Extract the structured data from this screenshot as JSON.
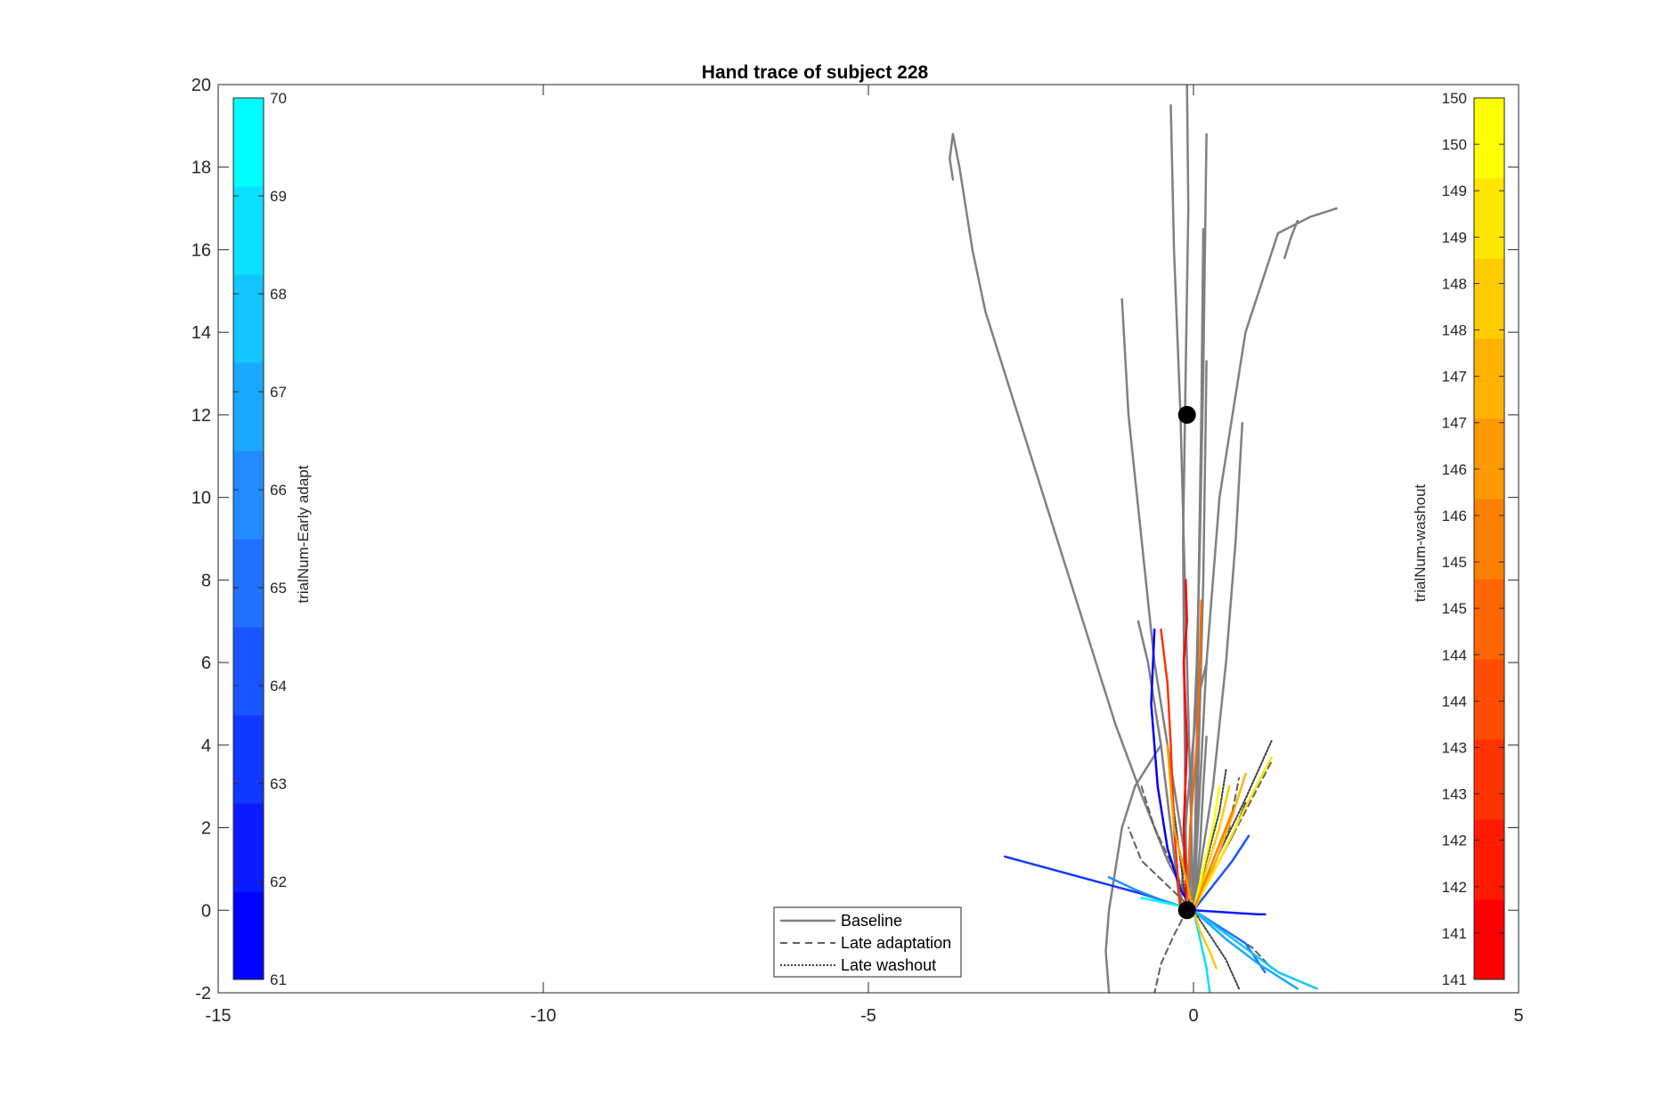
{
  "chart_data": {
    "type": "line",
    "title": "Hand trace of subject 228",
    "xlim": [
      -15,
      5
    ],
    "ylim": [
      -2,
      20
    ],
    "x_ticks": [
      -15,
      -10,
      -5,
      0,
      5
    ],
    "y_ticks": [
      -2,
      0,
      2,
      4,
      6,
      8,
      10,
      12,
      14,
      16,
      18,
      20
    ],
    "grid": false,
    "legend": {
      "placement": "bottom-center",
      "entries": [
        {
          "label": "Baseline",
          "style": "solid",
          "color": "#808080"
        },
        {
          "label": "Late adaptation",
          "style": "dashed",
          "color": "#606060"
        },
        {
          "label": "Late washout",
          "style": "dotted",
          "color": "#404040"
        }
      ]
    },
    "markers": [
      {
        "x": -0.1,
        "y": 12,
        "color": "#000000"
      },
      {
        "x": -0.1,
        "y": 0,
        "color": "#000000"
      }
    ],
    "colorbars": [
      {
        "label": "trialNum-Early adapt",
        "placement": "left",
        "tick_labels": [
          "61",
          "62",
          "63",
          "64",
          "65",
          "66",
          "67",
          "68",
          "69",
          "70"
        ],
        "colors": [
          "#0000ff",
          "#0a1cff",
          "#1238ff",
          "#1a54ff",
          "#2270ff",
          "#228cff",
          "#1aa8ff",
          "#12c4ff",
          "#0ae0ff",
          "#00ffff"
        ]
      },
      {
        "label": "trialNum-washout",
        "placement": "right",
        "tick_labels": [
          "141",
          "141",
          "142",
          "142",
          "143",
          "143",
          "144",
          "144",
          "145",
          "145",
          "146",
          "146",
          "147",
          "147",
          "148",
          "148",
          "149",
          "149",
          "150",
          "150"
        ],
        "colors": [
          "#ff0000",
          "#ff1a00",
          "#ff3300",
          "#ff4d00",
          "#ff6600",
          "#ff8000",
          "#ff9900",
          "#ffb300",
          "#ffcc00",
          "#ffe600",
          "#ffff00"
        ]
      }
    ],
    "series": [
      {
        "group": "Baseline",
        "color": "#808080",
        "style": "solid",
        "x": [
          -3.7,
          -3.6,
          -3.5,
          -3.4,
          -3.2,
          -2.8,
          -2.4,
          -2.0,
          -1.6,
          -1.2,
          -0.8,
          -0.4,
          0.0
        ],
        "y": [
          18.8,
          18.0,
          17.0,
          16.0,
          14.5,
          12.5,
          10.5,
          8.5,
          6.5,
          4.5,
          2.8,
          1.2,
          0.0
        ]
      },
      {
        "group": "Baseline",
        "color": "#808080",
        "style": "solid",
        "x": [
          -3.7,
          -3.75,
          -3.7
        ],
        "y": [
          18.8,
          18.2,
          17.7
        ]
      },
      {
        "group": "Baseline",
        "color": "#808080",
        "style": "solid",
        "x": [
          -0.1,
          -0.12,
          -0.14,
          -0.16,
          -0.12,
          -0.08,
          -0.1
        ],
        "y": [
          0.0,
          2.0,
          5.0,
          9.0,
          13.0,
          17.0,
          20.0
        ]
      },
      {
        "group": "Baseline",
        "color": "#808080",
        "style": "solid",
        "x": [
          0.0,
          -0.05,
          -0.1,
          -0.15,
          -0.2,
          -0.3,
          -0.35
        ],
        "y": [
          0.0,
          3.0,
          6.0,
          9.0,
          12.0,
          16.0,
          19.5
        ]
      },
      {
        "group": "Baseline",
        "color": "#808080",
        "style": "solid",
        "x": [
          -0.05,
          -0.03,
          0.05,
          0.1,
          0.15,
          0.2
        ],
        "y": [
          0.0,
          3.0,
          6.0,
          9.0,
          13.0,
          18.8
        ]
      },
      {
        "group": "Baseline",
        "color": "#808080",
        "style": "solid",
        "x": [
          0.0,
          0.05,
          0.08,
          0.12,
          0.15
        ],
        "y": [
          0.0,
          4.0,
          8.0,
          12.0,
          16.5
        ]
      },
      {
        "group": "Baseline",
        "color": "#808080",
        "style": "solid",
        "x": [
          0.0,
          0.1,
          0.2,
          0.4,
          0.8,
          1.3,
          1.8,
          2.2
        ],
        "y": [
          0.0,
          3.0,
          6.0,
          10.0,
          14.0,
          16.4,
          16.8,
          17.0
        ]
      },
      {
        "group": "Baseline",
        "color": "#808080",
        "style": "solid",
        "x": [
          1.6,
          1.5,
          1.4
        ],
        "y": [
          16.7,
          16.3,
          15.8
        ]
      },
      {
        "group": "Baseline",
        "color": "#808080",
        "style": "solid",
        "x": [
          0.0,
          0.05,
          0.1,
          0.15,
          0.18,
          0.2
        ],
        "y": [
          0.0,
          2.0,
          5.0,
          8.0,
          11.0,
          13.3
        ]
      },
      {
        "group": "Baseline",
        "color": "#808080",
        "style": "solid",
        "x": [
          0.0,
          0.3,
          0.5,
          0.65,
          0.75
        ],
        "y": [
          0.0,
          3.0,
          6.0,
          9.0,
          11.8
        ]
      },
      {
        "group": "Baseline",
        "color": "#808080",
        "style": "solid",
        "x": [
          0.0,
          -0.3,
          -0.6,
          -0.8,
          -1.0,
          -1.1
        ],
        "y": [
          0.0,
          3.0,
          6.0,
          9.0,
          12.0,
          14.8
        ]
      },
      {
        "group": "Baseline",
        "color": "#808080",
        "style": "solid",
        "x": [
          -0.2,
          -0.35,
          -0.5,
          -0.7,
          -0.85
        ],
        "y": [
          0.0,
          2.0,
          4.0,
          6.0,
          7.0
        ]
      },
      {
        "group": "Baseline",
        "color": "#808080",
        "style": "solid",
        "x": [
          0.0,
          0.1,
          0.15,
          0.2
        ],
        "y": [
          0.0,
          1.5,
          3.0,
          4.2
        ]
      },
      {
        "group": "Baseline",
        "color": "#808080",
        "style": "solid",
        "x": [
          -0.5,
          -0.9,
          -1.1,
          -1.2,
          -1.3,
          -1.35,
          -1.3
        ],
        "y": [
          4.0,
          3.0,
          2.0,
          1.0,
          0.0,
          -1.0,
          -2.0
        ]
      },
      {
        "group": "Baseline",
        "color": "#808080",
        "style": "solid",
        "x": [
          -0.2,
          -0.1,
          0.05,
          0.2
        ],
        "y": [
          0.0,
          2.5,
          5.0,
          6.0
        ]
      },
      {
        "group": "Late adaptation",
        "color": "#606060",
        "style": "dashed",
        "x": [
          0.0,
          -0.3,
          -0.6,
          -0.8
        ],
        "y": [
          0.0,
          1.0,
          2.0,
          3.0
        ]
      },
      {
        "group": "Late adaptation",
        "color": "#606060",
        "style": "dashed",
        "x": [
          0.0,
          -0.4,
          -0.8,
          -1.0
        ],
        "y": [
          0.0,
          0.6,
          1.2,
          2.0
        ]
      },
      {
        "group": "Late adaptation",
        "color": "#606060",
        "style": "dashed",
        "x": [
          0.0,
          0.3,
          0.55,
          0.7
        ],
        "y": [
          0.0,
          1.0,
          2.0,
          3.2
        ]
      },
      {
        "group": "Late adaptation",
        "color": "#606060",
        "style": "dashed",
        "x": [
          -0.1,
          -0.3,
          -0.5,
          -0.6
        ],
        "y": [
          0.0,
          -0.6,
          -1.3,
          -2.0
        ]
      },
      {
        "group": "Late adaptation",
        "color": "#606060",
        "style": "dashed",
        "x": [
          0.0,
          0.5,
          0.9,
          1.2
        ],
        "y": [
          0.0,
          -0.5,
          -0.9,
          -1.4
        ]
      },
      {
        "group": "Late adaptation",
        "color": "#606060",
        "style": "dashed",
        "x": [
          0.0,
          0.4,
          0.8,
          1.2
        ],
        "y": [
          0.0,
          1.2,
          2.4,
          3.6
        ]
      },
      {
        "group": "Late washout",
        "color": "#404040",
        "style": "dotted",
        "x": [
          0.0,
          0.4,
          0.8,
          1.2
        ],
        "y": [
          0.0,
          1.4,
          2.7,
          4.1
        ]
      },
      {
        "group": "Late washout",
        "color": "#404040",
        "style": "dotted",
        "x": [
          -0.1,
          -0.2,
          -0.3,
          -0.35
        ],
        "y": [
          0.0,
          1.2,
          2.4,
          3.6
        ]
      },
      {
        "group": "Late washout",
        "color": "#404040",
        "style": "dotted",
        "x": [
          0.0,
          0.2,
          0.4,
          0.5
        ],
        "y": [
          0.0,
          1.2,
          2.4,
          3.4
        ]
      },
      {
        "group": "Late washout",
        "color": "#404040",
        "style": "dotted",
        "x": [
          0.0,
          0.25,
          0.5,
          0.7
        ],
        "y": [
          0.0,
          -0.6,
          -1.2,
          -1.9
        ]
      },
      {
        "group": "Late washout",
        "color": "#404040",
        "style": "dotted",
        "x": [
          0.0,
          0.3,
          0.6,
          0.8
        ],
        "y": [
          0.0,
          0.9,
          1.8,
          2.6
        ]
      },
      {
        "group": "Early adapt",
        "color": "#0000ff",
        "style": "solid",
        "x": [
          -0.6,
          -0.65,
          -0.55,
          -0.4,
          -0.2,
          0.0
        ],
        "y": [
          6.8,
          5.0,
          3.0,
          1.5,
          0.5,
          0.0
        ]
      },
      {
        "group": "Early adapt",
        "color": "#1238ff",
        "style": "solid",
        "x": [
          -2.9,
          -2.2,
          -1.5,
          -0.8,
          -0.2,
          0.0
        ],
        "y": [
          1.3,
          1.0,
          0.7,
          0.4,
          0.1,
          0.0
        ]
      },
      {
        "group": "Early adapt",
        "color": "#1a54ff",
        "style": "solid",
        "x": [
          0.0,
          0.3,
          0.6,
          0.85
        ],
        "y": [
          0.0,
          0.6,
          1.2,
          1.8
        ]
      },
      {
        "group": "Early adapt",
        "color": "#2270ff",
        "style": "solid",
        "x": [
          0.0,
          0.4,
          0.8,
          1.1
        ],
        "y": [
          0.0,
          -0.4,
          -0.8,
          -1.5
        ]
      },
      {
        "group": "Early adapt",
        "color": "#0a1cff",
        "style": "solid",
        "x": [
          0.0,
          0.5,
          1.0,
          1.1
        ],
        "y": [
          0.0,
          -0.05,
          -0.1,
          -0.1
        ]
      },
      {
        "group": "Early adapt",
        "color": "#228cff",
        "style": "solid",
        "x": [
          -1.3,
          -0.9,
          -0.5,
          0.0
        ],
        "y": [
          0.8,
          0.5,
          0.25,
          0.0
        ]
      },
      {
        "group": "Early adapt",
        "color": "#1aa8ff",
        "style": "solid",
        "x": [
          0.0,
          0.5,
          1.0,
          1.6
        ],
        "y": [
          0.0,
          -0.7,
          -1.3,
          -1.9
        ]
      },
      {
        "group": "Early adapt",
        "color": "#12c4ff",
        "style": "solid",
        "x": [
          0.0,
          0.7,
          1.3,
          1.9
        ],
        "y": [
          0.0,
          -0.8,
          -1.5,
          -1.9
        ]
      },
      {
        "group": "Early adapt",
        "color": "#0ae0ff",
        "style": "solid",
        "x": [
          0.0,
          0.1,
          0.2,
          0.25
        ],
        "y": [
          0.0,
          -0.7,
          -1.4,
          -2.0
        ]
      },
      {
        "group": "Early adapt",
        "color": "#00ffff",
        "style": "solid",
        "x": [
          -0.8,
          -0.5,
          -0.2,
          0.0
        ],
        "y": [
          0.3,
          0.2,
          0.1,
          0.0
        ]
      },
      {
        "group": "Washout",
        "color": "#ff0000",
        "style": "solid",
        "x": [
          -0.1,
          -0.15,
          -0.1,
          -0.15,
          -0.1,
          -0.12
        ],
        "y": [
          0.0,
          2.0,
          4.0,
          6.0,
          7.0,
          8.0
        ]
      },
      {
        "group": "Washout",
        "color": "#ff3300",
        "style": "solid",
        "x": [
          -0.2,
          -0.3,
          -0.35,
          -0.4,
          -0.5
        ],
        "y": [
          0.0,
          2.0,
          4.0,
          5.5,
          6.8
        ]
      },
      {
        "group": "Washout",
        "color": "#ff6600",
        "style": "solid",
        "x": [
          -0.1,
          -0.05,
          0.05,
          0.1,
          0.12
        ],
        "y": [
          0.0,
          2.0,
          4.0,
          6.0,
          7.5
        ]
      },
      {
        "group": "Washout",
        "color": "#ff9900",
        "style": "solid",
        "x": [
          0.0,
          -0.3,
          -0.4
        ],
        "y": [
          0.0,
          2.0,
          4.0
        ]
      },
      {
        "group": "Washout",
        "color": "#ffb300",
        "style": "solid",
        "x": [
          0.0,
          0.35,
          0.6,
          0.8
        ],
        "y": [
          0.0,
          1.2,
          2.3,
          3.3
        ]
      },
      {
        "group": "Washout",
        "color": "#ffcc00",
        "style": "solid",
        "x": [
          0.0,
          0.2,
          0.4,
          0.55
        ],
        "y": [
          0.0,
          1.0,
          2.0,
          3.0
        ]
      },
      {
        "group": "Washout",
        "color": "#ffe600",
        "style": "solid",
        "x": [
          0.0,
          0.4,
          0.8,
          1.2
        ],
        "y": [
          0.0,
          1.2,
          2.5,
          3.7
        ]
      },
      {
        "group": "Washout",
        "color": "#ffff00",
        "style": "solid",
        "x": [
          0.0,
          0.15,
          0.3,
          0.4
        ],
        "y": [
          0.0,
          1.0,
          2.0,
          3.0
        ]
      },
      {
        "group": "Washout",
        "color": "#ff8000",
        "style": "solid",
        "x": [
          0.0,
          0.2,
          0.4,
          0.6
        ],
        "y": [
          0.0,
          0.8,
          1.6,
          2.4
        ]
      },
      {
        "group": "Washout",
        "color": "#ffcc00",
        "style": "solid",
        "x": [
          0.0,
          0.1,
          0.25,
          0.35
        ],
        "y": [
          0.0,
          -0.5,
          -1.0,
          -1.4
        ]
      }
    ]
  }
}
